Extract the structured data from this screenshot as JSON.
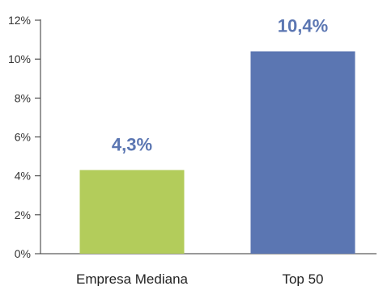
{
  "chart_data": {
    "type": "bar",
    "categories": [
      "Empresa Mediana",
      "Top 50"
    ],
    "values": [
      4.3,
      10.4
    ],
    "data_labels": [
      "4,3%",
      "10,4%"
    ],
    "bar_colors": [
      "#b3cc5b",
      "#5b76b2"
    ],
    "label_color": "#5b76b2",
    "title": "",
    "xlabel": "",
    "ylabel": "",
    "ylim": [
      0,
      12
    ],
    "yticks": [
      0,
      2,
      4,
      6,
      8,
      10,
      12
    ],
    "ytick_labels": [
      "0%",
      "2%",
      "4%",
      "6%",
      "8%",
      "10%",
      "12%"
    ],
    "grid": false,
    "legend": "none"
  }
}
